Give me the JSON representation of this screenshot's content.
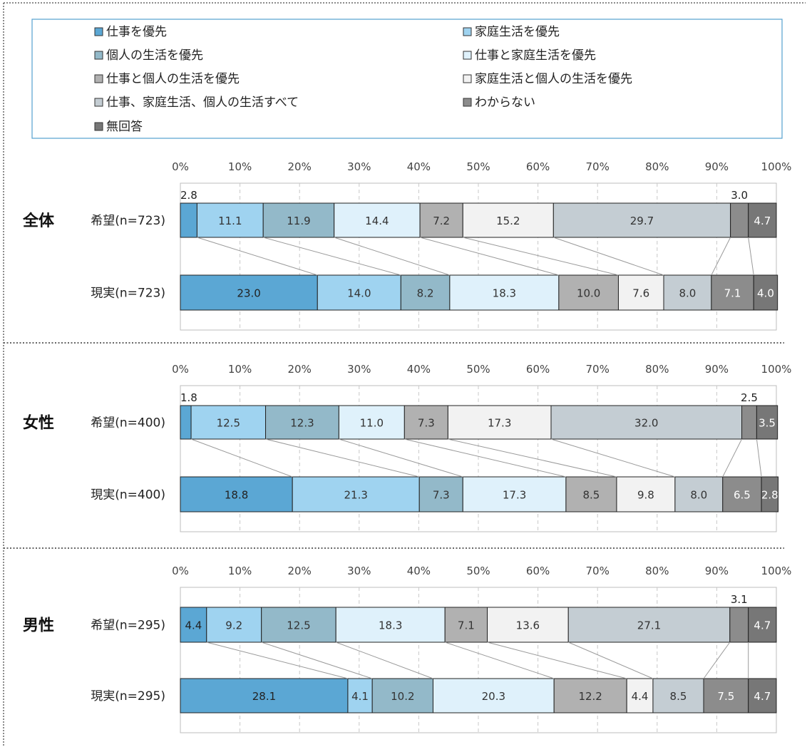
{
  "legend": [
    "仕事を優先",
    "家庭生活を優先",
    "個人の生活を優先",
    "仕事と家庭生活を優先",
    "仕事と個人の生活を優先",
    "家庭生活と個人の生活を優先",
    "仕事、家庭生活、個人の生活すべて",
    "わからない",
    "無回答"
  ],
  "colors": [
    "#5ba7d4",
    "#9fd3f0",
    "#93b9c9",
    "#dff1fb",
    "#b1b1b1",
    "#f2f2f2",
    "#c4cdd3",
    "#8c8c8c",
    "#777777"
  ],
  "chart_data": [
    {
      "type": "bar",
      "group": "全体",
      "x_ticks": [
        "0%",
        "10%",
        "20%",
        "30%",
        "40%",
        "50%",
        "60%",
        "70%",
        "80%",
        "90%",
        "100%"
      ],
      "xlim": [
        0,
        100
      ],
      "series": [
        {
          "name": "希望(n=723)",
          "values": [
            2.8,
            11.1,
            11.9,
            14.4,
            7.2,
            15.2,
            29.7,
            3.0,
            4.7
          ]
        },
        {
          "name": "現実(n=723)",
          "values": [
            23.0,
            14.0,
            8.2,
            18.3,
            10.0,
            7.6,
            8.0,
            7.1,
            4.0
          ]
        }
      ]
    },
    {
      "type": "bar",
      "group": "女性",
      "x_ticks": [
        "0%",
        "10%",
        "20%",
        "30%",
        "40%",
        "50%",
        "60%",
        "70%",
        "80%",
        "90%",
        "100%"
      ],
      "xlim": [
        0,
        100
      ],
      "series": [
        {
          "name": "希望(n=400)",
          "values": [
            1.8,
            12.5,
            12.3,
            11.0,
            7.3,
            17.3,
            32.0,
            2.5,
            3.5
          ]
        },
        {
          "name": "現実(n=400)",
          "values": [
            18.8,
            21.3,
            7.3,
            17.3,
            8.5,
            9.8,
            8.0,
            6.5,
            2.8
          ]
        }
      ]
    },
    {
      "type": "bar",
      "group": "男性",
      "x_ticks": [
        "0%",
        "10%",
        "20%",
        "30%",
        "40%",
        "50%",
        "60%",
        "70%",
        "80%",
        "90%",
        "100%"
      ],
      "xlim": [
        0,
        100
      ],
      "series": [
        {
          "name": "希望(n=295)",
          "values": [
            4.4,
            9.2,
            12.5,
            18.3,
            7.1,
            13.6,
            27.1,
            3.1,
            4.7
          ]
        },
        {
          "name": "現実(n=295)",
          "values": [
            28.1,
            4.1,
            10.2,
            20.3,
            12.2,
            4.4,
            8.5,
            7.5,
            4.7
          ]
        }
      ]
    }
  ]
}
